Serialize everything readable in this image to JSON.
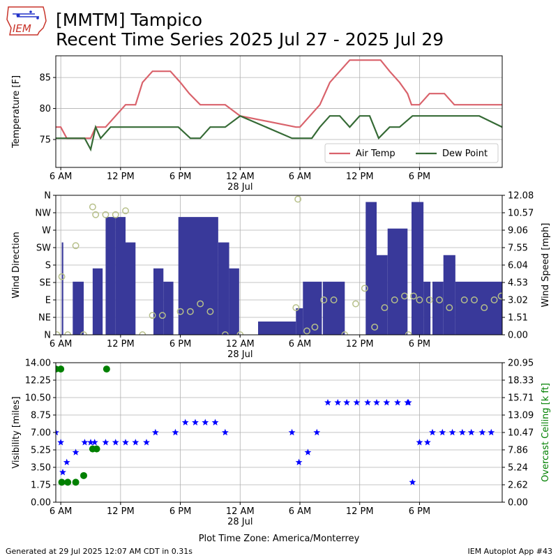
{
  "header": {
    "title_line1": "[MMTM] Tampico",
    "title_line2": "Recent Time Series 2025 Jul 27 - 2025 Jul 29",
    "logo_text": "IEM"
  },
  "footer": {
    "left": "Generated at 29 Jul 2025 12:07 AM CDT in 0.31s",
    "right": "IEM Autoplot App #43"
  },
  "colors": {
    "air_temp": "#d9626b",
    "dew_point": "#356a35",
    "wind_speed_bar": "#39399a",
    "wind_dir_marker": "#b7c08a",
    "visibility": "#0000ff",
    "ceiling": "#008000",
    "grid": "#b0b0b0"
  },
  "chart_data": [
    {
      "type": "line",
      "ylabel": "Temperature [F]",
      "ylim": [
        70.5,
        88.5
      ],
      "yticks": [
        75,
        80,
        85
      ],
      "ytick_labels": [
        "75",
        "80",
        "85"
      ],
      "xlim": [
        5.5,
        50.3
      ],
      "xticks": [
        6,
        12,
        18,
        24,
        30,
        36,
        42
      ],
      "xtick_labels": [
        "6 AM",
        "12 PM",
        "6 PM",
        "12 AM",
        "6 AM",
        "12 PM",
        "6 PM"
      ],
      "xtick_sublabels": [
        "",
        "",
        "",
        "28 Jul",
        "",
        "",
        ""
      ],
      "grid": true,
      "legend": {
        "position": "lower-right",
        "entries": [
          "Air Temp",
          "Dew Point"
        ]
      },
      "series": [
        {
          "name": "Air Temp",
          "x": [
            5.5,
            6,
            6.6,
            8.4,
            9,
            9.5,
            10.5,
            11.5,
            12.5,
            13.5,
            14.2,
            15.2,
            17,
            18,
            18.9,
            20,
            21,
            21.8,
            22.5,
            24,
            29.6,
            30,
            31,
            32,
            33,
            34,
            35,
            37,
            38.1,
            39,
            40,
            40.8,
            41.2,
            42,
            43,
            44,
            44.5,
            45.5,
            46,
            47,
            48,
            49,
            50.3
          ],
          "y": [
            77,
            77,
            75.2,
            75.2,
            75.2,
            77,
            77,
            78.8,
            80.6,
            80.6,
            84.2,
            86,
            86,
            84.2,
            82.4,
            80.6,
            80.6,
            80.6,
            80.6,
            78.8,
            77,
            77,
            78.8,
            80.6,
            84.2,
            86,
            87.8,
            87.8,
            87.8,
            86,
            84.2,
            82.4,
            80.6,
            80.6,
            82.4,
            82.4,
            82.4,
            80.6,
            80.6,
            80.6,
            80.6,
            80.6,
            80.6
          ]
        },
        {
          "name": "Dew Point",
          "x": [
            5.5,
            6,
            6.6,
            8.4,
            9,
            9.5,
            10,
            11,
            12.5,
            14.2,
            15.2,
            17.8,
            19,
            20,
            21,
            22.5,
            24,
            29.2,
            30.3,
            31.2,
            32,
            33,
            34,
            35,
            36,
            37,
            37.9,
            39,
            40,
            41.3,
            42,
            43,
            44,
            45,
            46,
            47,
            48,
            50.3
          ],
          "y": [
            75.2,
            75.2,
            75.2,
            75.2,
            73.4,
            77,
            75.2,
            77,
            77,
            77,
            77,
            77,
            75.2,
            75.2,
            77,
            77,
            78.8,
            75.2,
            75.2,
            75.2,
            77,
            78.8,
            78.8,
            77,
            78.8,
            78.8,
            75.2,
            77,
            77,
            78.8,
            78.8,
            78.8,
            78.8,
            78.8,
            78.8,
            78.8,
            78.8,
            77
          ]
        }
      ]
    },
    {
      "type": "bar",
      "ylabel": "Wind Direction",
      "ylabel_right": "Wind Speed [mph]",
      "ylim": [
        0,
        360
      ],
      "yticks": [
        0,
        45,
        90,
        135,
        180,
        225,
        270,
        315,
        360
      ],
      "ytick_labels": [
        "N",
        "NE",
        "E",
        "SE",
        "S",
        "SW",
        "W",
        "NW",
        "N"
      ],
      "ylim_right": [
        0,
        12.08
      ],
      "yticks_right": [
        0,
        1.51,
        3.02,
        4.53,
        6.04,
        7.55,
        9.06,
        10.57,
        12.08
      ],
      "ytick_labels_right": [
        "0.00",
        "1.51",
        "3.02",
        "4.53",
        "6.04",
        "7.55",
        "9.06",
        "10.57",
        "12.08"
      ],
      "xlim": [
        5.5,
        50.3
      ],
      "xticks": [
        6,
        12,
        18,
        24,
        30,
        36,
        42
      ],
      "xtick_labels": [
        "6 AM",
        "12 PM",
        "6 PM",
        "12 AM",
        "6 AM",
        "12 PM",
        "6 PM"
      ],
      "xtick_sublabels": [
        "",
        "",
        "",
        "28 Jul",
        "",
        "",
        ""
      ],
      "grid": true,
      "wind_speed_mph": [
        {
          "start": 6.1,
          "end": 6.25,
          "value": 8.0
        },
        {
          "start": 7.2,
          "end": 8.3,
          "value": 4.6
        },
        {
          "start": 9.2,
          "end": 10.2,
          "value": 5.75
        },
        {
          "start": 10.5,
          "end": 11.5,
          "value": 10.2
        },
        {
          "start": 11.5,
          "end": 12.5,
          "value": 10.2
        },
        {
          "start": 12.5,
          "end": 13.5,
          "value": 8.0
        },
        {
          "start": 15.3,
          "end": 16.3,
          "value": 5.75
        },
        {
          "start": 16.3,
          "end": 17.3,
          "value": 4.6
        },
        {
          "start": 17.8,
          "end": 21.8,
          "value": 10.2
        },
        {
          "start": 21.8,
          "end": 22.9,
          "value": 8.0
        },
        {
          "start": 22.9,
          "end": 23.9,
          "value": 5.75
        },
        {
          "start": 25.8,
          "end": 29.6,
          "value": 1.15
        },
        {
          "start": 29.6,
          "end": 30.3,
          "value": 2.3
        },
        {
          "start": 30.3,
          "end": 32.2,
          "value": 4.6
        },
        {
          "start": 32.3,
          "end": 34.5,
          "value": 4.6
        },
        {
          "start": 36.6,
          "end": 37.7,
          "value": 11.5
        },
        {
          "start": 37.7,
          "end": 38.8,
          "value": 6.9
        },
        {
          "start": 38.8,
          "end": 40.8,
          "value": 9.2
        },
        {
          "start": 41.2,
          "end": 42.4,
          "value": 11.5
        },
        {
          "start": 42.4,
          "end": 43.1,
          "value": 4.6
        },
        {
          "start": 43.3,
          "end": 44.4,
          "value": 4.6
        },
        {
          "start": 44.4,
          "end": 45.6,
          "value": 6.9
        },
        {
          "start": 45.6,
          "end": 46.8,
          "value": 4.6
        },
        {
          "start": 46.8,
          "end": 50.3,
          "value": 4.6
        }
      ],
      "wind_direction_deg": {
        "x": [
          5.6,
          6.1,
          6.7,
          7.5,
          8.3,
          9.2,
          9.5,
          10.5,
          11.5,
          12.5,
          14.2,
          15.2,
          16.2,
          18,
          19,
          20,
          21,
          22.5,
          24,
          29.6,
          29.8,
          30.7,
          31.5,
          32.4,
          33.4,
          34.5,
          35.6,
          36.5,
          37.5,
          38.5,
          39.5,
          40.5,
          40.9,
          41.4,
          42,
          43,
          44,
          45,
          46.5,
          47.5,
          48.5,
          49.5,
          50.2
        ],
        "y": [
          0,
          150,
          0,
          230,
          0,
          330,
          310,
          310,
          310,
          320,
          0,
          50,
          50,
          60,
          60,
          80,
          60,
          0,
          0,
          70,
          350,
          10,
          20,
          90,
          90,
          0,
          80,
          120,
          20,
          70,
          90,
          100,
          0,
          100,
          90,
          90,
          90,
          70,
          90,
          90,
          70,
          90,
          100
        ]
      }
    },
    {
      "type": "scatter",
      "ylabel": "Visibility [miles]",
      "ylabel_right": "Overcast Ceiling [k ft]",
      "xlabel": "Plot Time Zone: America/Monterrey",
      "ylim": [
        0,
        14
      ],
      "yticks": [
        0,
        1.75,
        3.5,
        5.25,
        7,
        8.75,
        10.5,
        12.25,
        14
      ],
      "ytick_labels": [
        "0.00",
        "1.75",
        "3.50",
        "5.25",
        "7.00",
        "8.75",
        "10.50",
        "12.25",
        "14.00"
      ],
      "ylim_right": [
        0,
        20.95
      ],
      "yticks_right": [
        0,
        2.62,
        5.24,
        7.86,
        10.47,
        13.09,
        15.71,
        18.33,
        20.95
      ],
      "ytick_labels_right": [
        "0.00",
        "2.62",
        "5.24",
        "7.86",
        "10.47",
        "13.09",
        "15.71",
        "18.33",
        "20.95"
      ],
      "xlim": [
        5.5,
        50.3
      ],
      "xticks": [
        6,
        12,
        18,
        24,
        30,
        36,
        42
      ],
      "xtick_labels": [
        "6 AM",
        "12 PM",
        "6 PM",
        "12 AM",
        "6 AM",
        "12 PM",
        "6 PM"
      ],
      "xtick_sublabels": [
        "",
        "",
        "",
        "28 Jul",
        "",
        "",
        ""
      ],
      "grid": true,
      "series": [
        {
          "name": "Visibility",
          "x": [
            5.5,
            6,
            6.2,
            6.6,
            7.5,
            8.4,
            9,
            9.4,
            10.5,
            11.5,
            12.5,
            13.5,
            14.6,
            15.5,
            17.5,
            18.5,
            19.5,
            20.5,
            21.5,
            22.5,
            29.2,
            29.9,
            30.8,
            31.7,
            32.8,
            33.8,
            34.7,
            35.7,
            36.8,
            37.7,
            38.7,
            39.8,
            40.8,
            40.9,
            41.3,
            42,
            42.8,
            43.3,
            44.3,
            45.3,
            46.3,
            47.2,
            48.3,
            49.2
          ],
          "y": [
            7,
            6,
            3,
            4,
            5,
            6,
            6,
            6,
            6,
            6,
            6,
            6,
            6,
            7,
            7,
            8,
            8,
            8,
            8,
            7,
            7,
            4,
            5,
            7,
            10,
            10,
            10,
            10,
            10,
            10,
            10,
            10,
            10,
            10,
            2,
            6,
            6,
            7,
            7,
            7,
            7,
            7,
            7,
            7
          ]
        },
        {
          "name": "Overcast Ceiling",
          "x": [
            5.5,
            6,
            6.1,
            6.7,
            7.5,
            8.3,
            9.2,
            9.6,
            10.6
          ],
          "y": [
            20,
            20,
            3,
            3,
            3,
            4,
            8,
            8,
            20
          ]
        }
      ]
    }
  ]
}
